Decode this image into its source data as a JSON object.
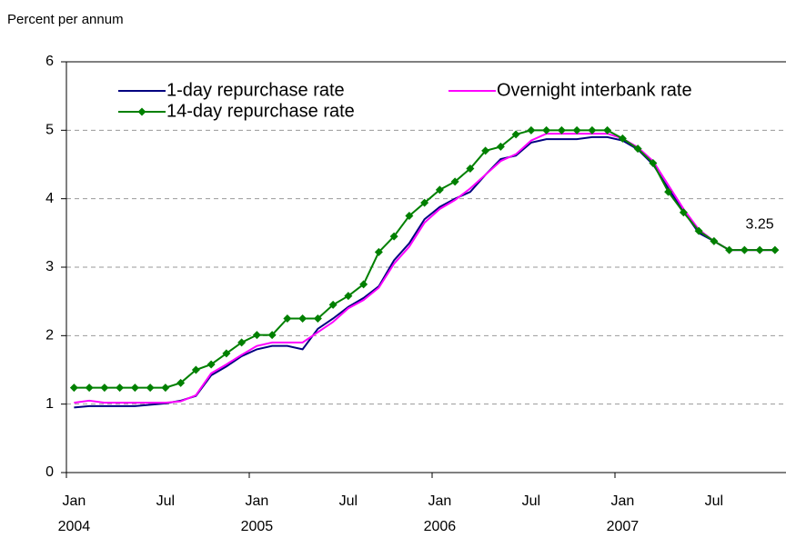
{
  "chart_data": {
    "type": "line",
    "y_label": "Percent per annum",
    "categories": [
      "Jan",
      null,
      null,
      null,
      null,
      null,
      "Jul",
      null,
      null,
      null,
      null,
      null,
      "Jan",
      null,
      null,
      null,
      null,
      null,
      "Jul",
      null,
      null,
      null,
      null,
      null,
      "Jan",
      null,
      null,
      null,
      null,
      null,
      "Jul",
      null,
      null,
      null,
      null,
      null,
      "Jan",
      null,
      null,
      null,
      null,
      null,
      "Jul",
      null,
      null,
      null,
      null
    ],
    "years": [
      "2004",
      "2005",
      "2006",
      "2007"
    ],
    "ylim": [
      0,
      6
    ],
    "yticks": [
      0,
      1,
      2,
      3,
      4,
      5,
      6
    ],
    "grid": true,
    "legend": "top",
    "series": [
      {
        "name": "1-day repurchase rate",
        "color": "#000080",
        "values": [
          0.95,
          0.97,
          0.97,
          0.97,
          0.97,
          0.99,
          1.01,
          1.05,
          1.12,
          1.42,
          1.55,
          1.7,
          1.8,
          1.85,
          1.85,
          1.8,
          2.1,
          2.25,
          2.42,
          2.55,
          2.72,
          3.1,
          3.35,
          3.7,
          3.88,
          4.0,
          4.1,
          4.35,
          4.58,
          4.63,
          4.82,
          4.87,
          4.87,
          4.87,
          4.9,
          4.9,
          4.85,
          4.72,
          4.5,
          4.15,
          3.82,
          3.5,
          3.38,
          3.25,
          3.25,
          3.25,
          3.25
        ]
      },
      {
        "name": "Overnight interbank rate",
        "color": "#ff00ff",
        "values": [
          1.02,
          1.05,
          1.02,
          1.02,
          1.02,
          1.02,
          1.02,
          1.04,
          1.13,
          1.45,
          1.58,
          1.72,
          1.85,
          1.9,
          1.9,
          1.9,
          2.05,
          2.2,
          2.4,
          2.52,
          2.7,
          3.05,
          3.3,
          3.65,
          3.85,
          3.98,
          4.15,
          4.35,
          4.55,
          4.65,
          4.85,
          4.95,
          4.95,
          4.95,
          4.95,
          4.95,
          4.88,
          4.75,
          4.55,
          4.2,
          3.85,
          3.55,
          3.38,
          3.25,
          3.25,
          3.25,
          3.25
        ]
      },
      {
        "name": "14-day repurchase rate",
        "color": "#008000",
        "marker": "diamond",
        "label_index": 45,
        "values": [
          1.24,
          1.24,
          1.24,
          1.24,
          1.24,
          1.24,
          1.24,
          1.31,
          1.5,
          1.58,
          1.74,
          1.9,
          2.01,
          2.01,
          2.25,
          2.25,
          2.25,
          2.45,
          2.58,
          2.75,
          3.22,
          3.45,
          3.75,
          3.94,
          4.13,
          4.25,
          4.44,
          4.7,
          4.76,
          4.94,
          5.0,
          5.0,
          5.0,
          5.0,
          5.0,
          5.0,
          4.88,
          4.73,
          4.52,
          4.1,
          3.8,
          3.53,
          3.38,
          3.25,
          3.25,
          3.25,
          3.25
        ]
      }
    ]
  }
}
